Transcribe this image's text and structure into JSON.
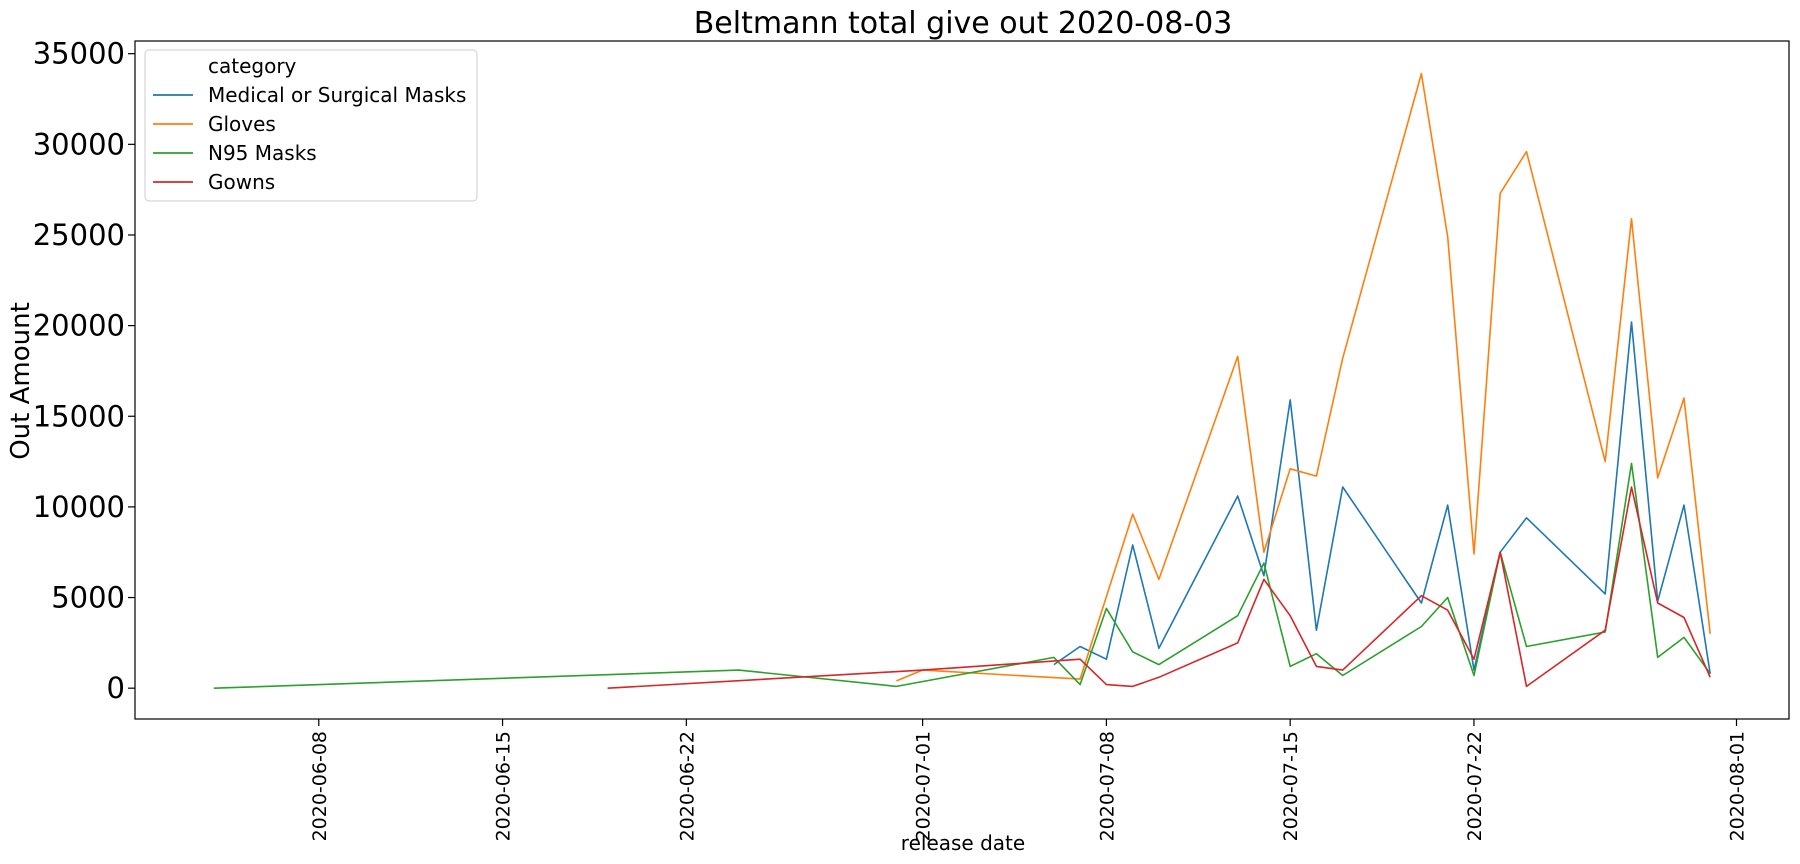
{
  "chart_data": {
    "type": "line",
    "title": "Beltmann total give out 2020-08-03",
    "xlabel": "release date",
    "ylabel": "Out Amount",
    "x_ticks": [
      "2020-06-08",
      "2020-06-15",
      "2020-06-22",
      "2020-07-01",
      "2020-07-08",
      "2020-07-15",
      "2020-07-22",
      "2020-08-01"
    ],
    "y_ticks": [
      0,
      5000,
      10000,
      15000,
      20000,
      25000,
      30000,
      35000
    ],
    "xlim": [
      "2020-06-01",
      "2020-08-03"
    ],
    "ylim": [
      -1700,
      35700
    ],
    "grid": false,
    "legend": {
      "title": "category",
      "position": "top-left"
    },
    "series": [
      {
        "name": "Medical or Surgical Masks",
        "color": "#1f77b4",
        "points": [
          [
            "2020-07-06",
            1300
          ],
          [
            "2020-07-07",
            2300
          ],
          [
            "2020-07-08",
            1600
          ],
          [
            "2020-07-09",
            7900
          ],
          [
            "2020-07-10",
            2200
          ],
          [
            "2020-07-13",
            10600
          ],
          [
            "2020-07-14",
            6200
          ],
          [
            "2020-07-15",
            15900
          ],
          [
            "2020-07-16",
            3200
          ],
          [
            "2020-07-17",
            11100
          ],
          [
            "2020-07-20",
            4700
          ],
          [
            "2020-07-21",
            10100
          ],
          [
            "2020-07-22",
            1000
          ],
          [
            "2020-07-23",
            7500
          ],
          [
            "2020-07-24",
            9400
          ],
          [
            "2020-07-27",
            5200
          ],
          [
            "2020-07-28",
            20200
          ],
          [
            "2020-07-29",
            4800
          ],
          [
            "2020-07-30",
            10100
          ],
          [
            "2020-07-31",
            800
          ]
        ]
      },
      {
        "name": "Gloves",
        "color": "#ff7f0e",
        "points": [
          [
            "2020-06-30",
            400
          ],
          [
            "2020-07-01",
            1000
          ],
          [
            "2020-07-07",
            500
          ],
          [
            "2020-07-09",
            9600
          ],
          [
            "2020-07-10",
            6000
          ],
          [
            "2020-07-13",
            18300
          ],
          [
            "2020-07-14",
            7500
          ],
          [
            "2020-07-15",
            12100
          ],
          [
            "2020-07-16",
            11700
          ],
          [
            "2020-07-17",
            18200
          ],
          [
            "2020-07-20",
            33900
          ],
          [
            "2020-07-21",
            24900
          ],
          [
            "2020-07-22",
            7400
          ],
          [
            "2020-07-23",
            27300
          ],
          [
            "2020-07-24",
            29600
          ],
          [
            "2020-07-27",
            12500
          ],
          [
            "2020-07-28",
            25900
          ],
          [
            "2020-07-29",
            11600
          ],
          [
            "2020-07-30",
            16000
          ],
          [
            "2020-07-31",
            3000
          ]
        ]
      },
      {
        "name": "N95 Masks",
        "color": "#2ca02c",
        "points": [
          [
            "2020-06-04",
            0
          ],
          [
            "2020-06-24",
            1000
          ],
          [
            "2020-06-30",
            100
          ],
          [
            "2020-07-06",
            1700
          ],
          [
            "2020-07-07",
            200
          ],
          [
            "2020-07-08",
            4400
          ],
          [
            "2020-07-09",
            2000
          ],
          [
            "2020-07-10",
            1300
          ],
          [
            "2020-07-13",
            4000
          ],
          [
            "2020-07-14",
            6900
          ],
          [
            "2020-07-15",
            1200
          ],
          [
            "2020-07-16",
            1900
          ],
          [
            "2020-07-17",
            700
          ],
          [
            "2020-07-20",
            3400
          ],
          [
            "2020-07-21",
            5000
          ],
          [
            "2020-07-22",
            700
          ],
          [
            "2020-07-23",
            7500
          ],
          [
            "2020-07-24",
            2300
          ],
          [
            "2020-07-27",
            3100
          ],
          [
            "2020-07-28",
            12400
          ],
          [
            "2020-07-29",
            1700
          ],
          [
            "2020-07-30",
            2800
          ],
          [
            "2020-07-31",
            800
          ]
        ]
      },
      {
        "name": "Gowns",
        "color": "#d62728",
        "points": [
          [
            "2020-06-19",
            0
          ],
          [
            "2020-07-01",
            1000
          ],
          [
            "2020-07-07",
            1600
          ],
          [
            "2020-07-08",
            200
          ],
          [
            "2020-07-09",
            100
          ],
          [
            "2020-07-10",
            600
          ],
          [
            "2020-07-13",
            2500
          ],
          [
            "2020-07-14",
            6000
          ],
          [
            "2020-07-15",
            4000
          ],
          [
            "2020-07-16",
            1200
          ],
          [
            "2020-07-17",
            1000
          ],
          [
            "2020-07-20",
            5100
          ],
          [
            "2020-07-21",
            4300
          ],
          [
            "2020-07-22",
            1600
          ],
          [
            "2020-07-23",
            7500
          ],
          [
            "2020-07-24",
            100
          ],
          [
            "2020-07-27",
            3200
          ],
          [
            "2020-07-28",
            11100
          ],
          [
            "2020-07-29",
            4700
          ],
          [
            "2020-07-30",
            3900
          ],
          [
            "2020-07-31",
            600
          ]
        ]
      }
    ]
  }
}
